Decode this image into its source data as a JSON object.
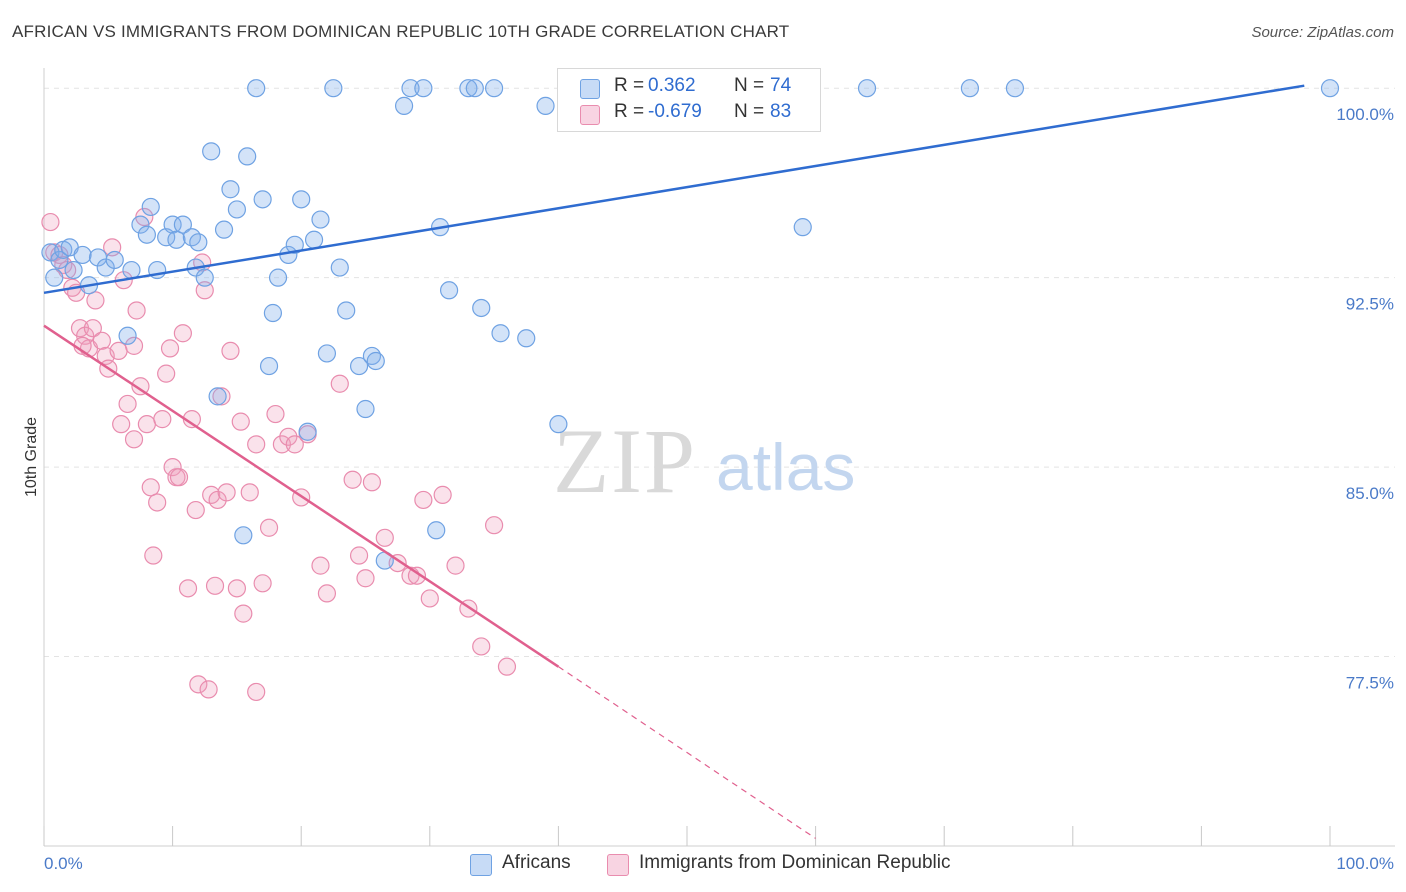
{
  "title": "AFRICAN VS IMMIGRANTS FROM DOMINICAN REPUBLIC 10TH GRADE CORRELATION CHART",
  "source": "Source: ZipAtlas.com",
  "watermark": {
    "zip": "ZIP",
    "atlas": "atlas"
  },
  "colors": {
    "blue": "#6fa2e3",
    "blue_fill": "rgba(130,175,235,0.35)",
    "blue_line": "#2f6cd0",
    "pink": "#e98cae",
    "pink_fill": "rgba(240,160,190,0.30)",
    "pink_line": "#e0608e",
    "tick_text": "#4a7ac8",
    "grid": "#e3e3e3"
  },
  "legend": {
    "rows": [
      {
        "r_label": "R =",
        "r_value": "0.362",
        "n_label": "N =",
        "n_value": "74",
        "color": "blue"
      },
      {
        "r_label": "R =",
        "r_value": "-0.679",
        "n_label": "N =",
        "n_value": "83",
        "color": "pink"
      }
    ]
  },
  "chart_data": {
    "type": "scatter",
    "title": "AFRICAN VS IMMIGRANTS FROM DOMINICAN REPUBLIC 10TH GRADE CORRELATION CHART",
    "xlabel": "",
    "ylabel": "10th Grade",
    "xlim": [
      0,
      100
    ],
    "ylim": [
      70,
      100.8
    ],
    "x_tick_labels": [
      "0.0%",
      "100.0%"
    ],
    "y_ticks": [
      77.5,
      85.0,
      92.5,
      100.0
    ],
    "y_tick_labels": [
      "77.5%",
      "85.0%",
      "92.5%",
      "100.0%"
    ],
    "grid": true,
    "legend_position": "top-center",
    "series": [
      {
        "name": "Africans",
        "color": "blue",
        "trend": {
          "x": [
            0,
            98
          ],
          "y": [
            91.9,
            100.1
          ],
          "dashed_to": null
        },
        "points": [
          [
            0.5,
            93.5
          ],
          [
            0.8,
            92.5
          ],
          [
            1.2,
            93.2
          ],
          [
            1.5,
            93.6
          ],
          [
            2,
            93.7
          ],
          [
            2.3,
            92.8
          ],
          [
            3,
            93.4
          ],
          [
            3.5,
            92.2
          ],
          [
            4.2,
            93.3
          ],
          [
            4.8,
            92.9
          ],
          [
            5.5,
            93.2
          ],
          [
            6.5,
            90.2
          ],
          [
            6.8,
            92.8
          ],
          [
            7.5,
            94.6
          ],
          [
            8,
            94.2
          ],
          [
            8.3,
            95.3
          ],
          [
            8.8,
            92.8
          ],
          [
            9.5,
            94.1
          ],
          [
            10,
            94.6
          ],
          [
            10.3,
            94.0
          ],
          [
            10.8,
            94.6
          ],
          [
            11.5,
            94.1
          ],
          [
            11.8,
            92.9
          ],
          [
            12,
            93.9
          ],
          [
            12.5,
            92.5
          ],
          [
            13,
            97.5
          ],
          [
            13.5,
            87.8
          ],
          [
            14,
            94.4
          ],
          [
            14.5,
            96.0
          ],
          [
            15,
            95.2
          ],
          [
            15.5,
            82.3
          ],
          [
            15.8,
            97.3
          ],
          [
            16.5,
            100.0
          ],
          [
            17,
            95.6
          ],
          [
            17.5,
            89.0
          ],
          [
            17.8,
            91.1
          ],
          [
            18.2,
            92.5
          ],
          [
            19,
            93.4
          ],
          [
            19.5,
            93.8
          ],
          [
            20,
            95.6
          ],
          [
            20.5,
            86.4
          ],
          [
            21,
            94.0
          ],
          [
            21.5,
            94.8
          ],
          [
            22,
            89.5
          ],
          [
            22.5,
            100.0
          ],
          [
            23,
            92.9
          ],
          [
            23.5,
            91.2
          ],
          [
            24.5,
            89.0
          ],
          [
            25,
            87.3
          ],
          [
            25.5,
            89.4
          ],
          [
            25.8,
            89.2
          ],
          [
            26.5,
            81.3
          ],
          [
            28,
            99.3
          ],
          [
            28.5,
            100.0
          ],
          [
            29.5,
            100.0
          ],
          [
            30.5,
            82.5
          ],
          [
            30.8,
            94.5
          ],
          [
            31.5,
            92.0
          ],
          [
            33,
            100.0
          ],
          [
            33.5,
            100.0
          ],
          [
            34,
            91.3
          ],
          [
            35,
            100.0
          ],
          [
            35.5,
            90.3
          ],
          [
            37.5,
            90.1
          ],
          [
            39,
            99.3
          ],
          [
            40,
            86.7
          ],
          [
            41,
            99.9
          ],
          [
            41.5,
            100.0
          ],
          [
            43,
            99.2
          ],
          [
            59,
            94.5
          ],
          [
            64,
            100.0
          ],
          [
            72,
            100.0
          ],
          [
            75.5,
            100.0
          ],
          [
            100,
            100.0
          ]
        ]
      },
      {
        "name": "Immigrants from Dominican Republic",
        "color": "pink",
        "trend": {
          "x": [
            0,
            40
          ],
          "y": [
            90.6,
            77.1
          ],
          "dashed_to": [
            60,
            70.3
          ]
        },
        "points": [
          [
            0.5,
            94.7
          ],
          [
            0.8,
            93.5
          ],
          [
            1.2,
            93.4
          ],
          [
            1.5,
            93.0
          ],
          [
            1.8,
            92.8
          ],
          [
            2.2,
            92.1
          ],
          [
            2.5,
            91.9
          ],
          [
            2.8,
            90.5
          ],
          [
            3.2,
            90.2
          ],
          [
            3.5,
            89.7
          ],
          [
            3.8,
            90.5
          ],
          [
            4,
            91.6
          ],
          [
            4.5,
            90.0
          ],
          [
            4.8,
            89.4
          ],
          [
            5,
            88.9
          ],
          [
            5.3,
            93.7
          ],
          [
            5.8,
            89.6
          ],
          [
            6,
            86.7
          ],
          [
            6.5,
            87.5
          ],
          [
            7,
            86.1
          ],
          [
            7.2,
            91.2
          ],
          [
            7.5,
            88.2
          ],
          [
            7.8,
            94.9
          ],
          [
            8,
            86.7
          ],
          [
            8.3,
            84.2
          ],
          [
            8.5,
            81.5
          ],
          [
            8.8,
            83.6
          ],
          [
            9.2,
            86.9
          ],
          [
            9.5,
            88.7
          ],
          [
            9.8,
            89.7
          ],
          [
            10,
            85.0
          ],
          [
            10.3,
            84.6
          ],
          [
            10.5,
            84.6
          ],
          [
            10.8,
            90.3
          ],
          [
            11.2,
            80.2
          ],
          [
            11.5,
            86.9
          ],
          [
            11.8,
            83.3
          ],
          [
            12,
            76.4
          ],
          [
            12.5,
            92.0
          ],
          [
            12.8,
            76.2
          ],
          [
            13,
            83.9
          ],
          [
            13.3,
            80.3
          ],
          [
            13.5,
            83.7
          ],
          [
            13.8,
            87.8
          ],
          [
            14.2,
            84.0
          ],
          [
            14.5,
            89.6
          ],
          [
            15,
            80.2
          ],
          [
            15.3,
            86.8
          ],
          [
            15.5,
            79.2
          ],
          [
            16,
            84.0
          ],
          [
            16.5,
            76.1
          ],
          [
            17,
            80.4
          ],
          [
            17.5,
            82.6
          ],
          [
            18,
            87.1
          ],
          [
            18.5,
            85.9
          ],
          [
            19,
            86.2
          ],
          [
            19.5,
            85.9
          ],
          [
            20,
            83.8
          ],
          [
            20.5,
            86.3
          ],
          [
            21.5,
            81.1
          ],
          [
            22,
            80.0
          ],
          [
            23,
            88.3
          ],
          [
            24,
            84.5
          ],
          [
            24.5,
            81.5
          ],
          [
            25,
            80.6
          ],
          [
            25.5,
            84.4
          ],
          [
            26.5,
            82.2
          ],
          [
            27.5,
            81.2
          ],
          [
            28.5,
            80.7
          ],
          [
            29,
            80.7
          ],
          [
            29.5,
            83.7
          ],
          [
            30,
            79.8
          ],
          [
            31,
            83.9
          ],
          [
            32,
            81.1
          ],
          [
            33,
            79.4
          ],
          [
            34,
            77.9
          ],
          [
            35,
            82.7
          ],
          [
            36,
            77.1
          ],
          [
            7,
            89.8
          ],
          [
            6.2,
            92.4
          ],
          [
            3,
            89.8
          ],
          [
            12.3,
            93.1
          ],
          [
            16.5,
            85.9
          ]
        ]
      }
    ]
  }
}
